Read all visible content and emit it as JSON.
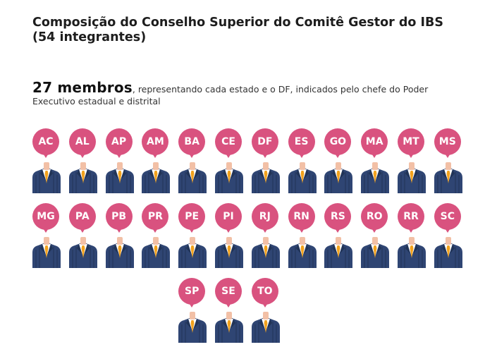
{
  "title": "Composição do Conselho Superior do Comitê Gestor do IBS (54 integrantes)",
  "subtitle": {
    "highlight": "27 membros",
    "text": ", representando cada estado e o DF, indicados pelo chefe do Poder Executivo estadual e distrital"
  },
  "colors": {
    "bubble": "#d9527f",
    "suit": "#2f4573",
    "suit_shadow": "#213457",
    "skin": "#f2c0a6",
    "shirt": "#ffffff",
    "tie": "#f2a21d"
  },
  "icons": {
    "member": "person-suit-icon"
  },
  "members": [
    "AC",
    "AL",
    "AP",
    "AM",
    "BA",
    "CE",
    "DF",
    "ES",
    "GO",
    "MA",
    "MT",
    "MS",
    "MG",
    "PA",
    "PB",
    "PR",
    "PE",
    "PI",
    "RJ",
    "RN",
    "RS",
    "RO",
    "RR",
    "SC",
    "SP",
    "SE",
    "TO"
  ]
}
